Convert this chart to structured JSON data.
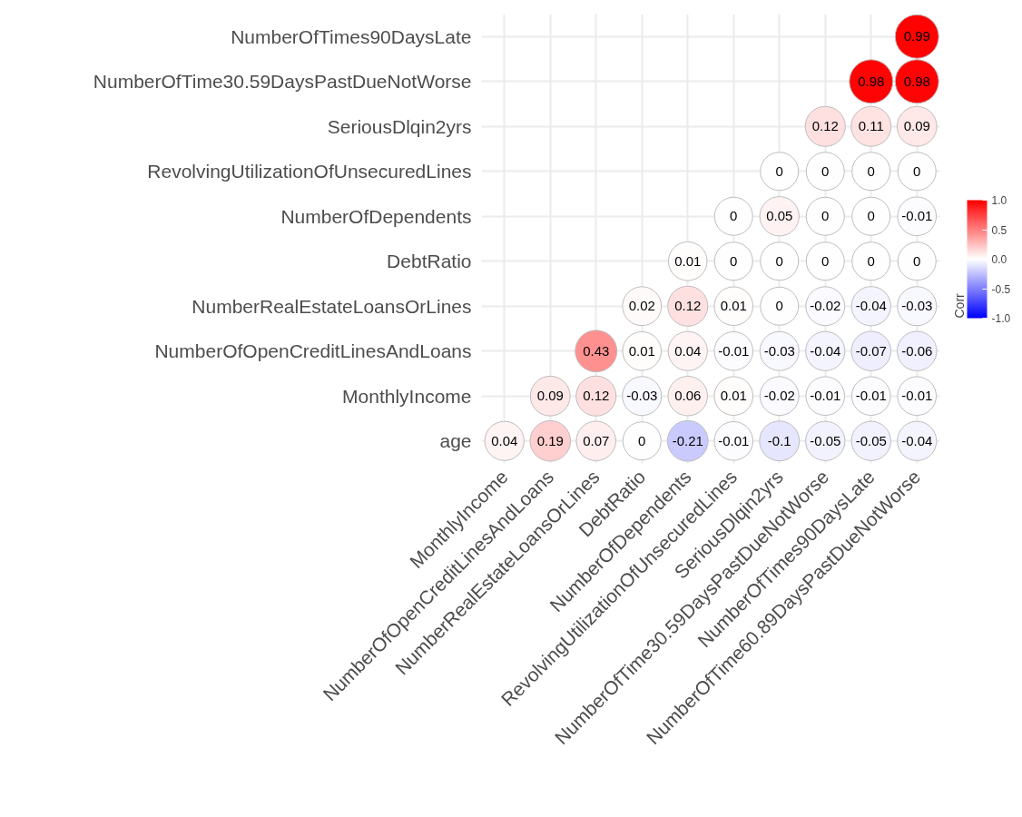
{
  "chart_data": {
    "type": "heatmap",
    "clabel": "Corr",
    "categories": [
      "MonthlyIncome",
      "NumberOfOpenCreditLinesAndLoans",
      "NumberRealEstateLoansOrLines",
      "DebtRatio",
      "NumberOfDependents",
      "RevolvingUtilizationOfUnsecuredLines",
      "SeriousDlqin2yrs",
      "NumberOfTime30.59DaysPastDueNotWorse",
      "NumberOfTimes90DaysLate",
      "NumberOfTime60.89DaysPastDueNotWorse"
    ],
    "y_categories": [
      "NumberOfTimes90DaysLate",
      "NumberOfTime30.59DaysPastDueNotWorse",
      "SeriousDlqin2yrs",
      "RevolvingUtilizationOfUnsecuredLines",
      "NumberOfDependents",
      "DebtRatio",
      "NumberRealEstateLoansOrLines",
      "NumberOfOpenCreditLinesAndLoans",
      "MonthlyIncome",
      "age"
    ],
    "cells": [
      [
        null,
        null,
        null,
        null,
        null,
        null,
        null,
        null,
        null,
        0.99
      ],
      [
        null,
        null,
        null,
        null,
        null,
        null,
        null,
        null,
        0.98,
        0.98
      ],
      [
        null,
        null,
        null,
        null,
        null,
        null,
        null,
        0.12,
        0.11,
        0.09
      ],
      [
        null,
        null,
        null,
        null,
        null,
        null,
        0,
        0,
        0,
        0
      ],
      [
        null,
        null,
        null,
        null,
        null,
        0,
        0.05,
        0,
        0,
        -0.01
      ],
      [
        null,
        null,
        null,
        null,
        0.01,
        0,
        0,
        0,
        0,
        0
      ],
      [
        null,
        null,
        null,
        0.02,
        0.12,
        0.01,
        0,
        -0.02,
        -0.04,
        -0.03
      ],
      [
        null,
        null,
        0.43,
        0.01,
        0.04,
        -0.01,
        -0.03,
        -0.04,
        -0.07,
        -0.06
      ],
      [
        null,
        0.09,
        0.12,
        -0.03,
        0.06,
        0.01,
        -0.02,
        -0.01,
        -0.01,
        -0.01
      ],
      [
        0.04,
        0.19,
        0.07,
        0,
        -0.21,
        -0.01,
        -0.1,
        -0.05,
        -0.05,
        -0.04
      ]
    ],
    "clim": [
      -1,
      1
    ],
    "cticks": [
      {
        "value": -1,
        "label": "-1.0"
      },
      {
        "value": -0.5,
        "label": "-0.5"
      },
      {
        "value": 0,
        "label": "0.0"
      },
      {
        "value": 0.5,
        "label": "0.5"
      },
      {
        "value": 1,
        "label": "1.0"
      }
    ],
    "colors": [
      "#0000ff",
      "#ffffff",
      "#ff0000"
    ],
    "data_labels": true,
    "grid": true,
    "marker": "circle"
  }
}
